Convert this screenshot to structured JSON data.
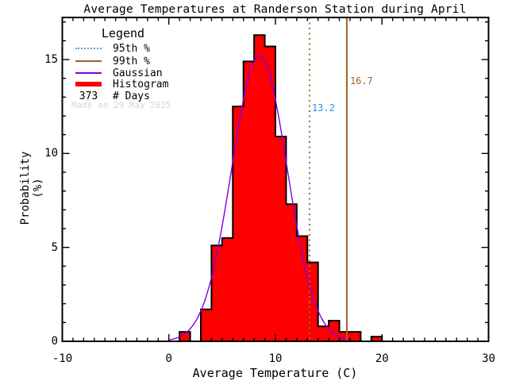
{
  "title": "Average Temperatures at Randerson Station during April",
  "x_axis": {
    "label": "Average Temperature (C)",
    "ticks": [
      -10,
      0,
      10,
      20,
      30
    ],
    "minor_step": 1
  },
  "y_axis": {
    "label": "Probability (%)",
    "ticks": [
      0,
      5,
      10,
      15
    ],
    "minor_step": 1
  },
  "legend": {
    "title": "Legend",
    "items": [
      {
        "label": "95th %",
        "style": "dotted",
        "color": "#4da3dd"
      },
      {
        "label": "99th %",
        "style": "solid",
        "color": "#a0622d"
      },
      {
        "label": "Gaussian",
        "style": "solid",
        "color": "#7d00e6"
      },
      {
        "label": "Histogram",
        "style": "thick",
        "color": "#ff0000"
      }
    ],
    "days_value": "373",
    "days_label": "# Days",
    "watermark": "Made on 29 May 2025"
  },
  "annotations": {
    "p95": {
      "label": "13.2",
      "value": 13.2,
      "line_color": "#9a7430",
      "text_color": "#2b93e0",
      "line_style": "dotted"
    },
    "p99": {
      "label": "16.7",
      "value": 16.7,
      "line_color": "#a0622d",
      "text_color": "#a0622d",
      "line_style": "solid"
    }
  },
  "colors": {
    "histogram_fill": "#ff0000",
    "histogram_outline": "#000000",
    "gaussian_curve": "#7d00e6",
    "frame": "#000000",
    "watermark": "#d5d5d5"
  },
  "chart_data": {
    "type": "histogram+gaussian",
    "title": "Average Temperatures at Randerson Station during April",
    "xlabel": "Average Temperature (C)",
    "ylabel": "Probability (%)",
    "xlim": [
      -10,
      30
    ],
    "ylim": [
      0,
      17.24
    ],
    "grid": false,
    "legend_position": "top-left",
    "n_days": 373,
    "percentile_95": 13.2,
    "percentile_99": 16.7,
    "bin_width": 1,
    "bin_start": [
      1,
      2,
      3,
      4,
      5,
      6,
      7,
      8,
      9,
      10,
      11,
      12,
      13,
      14,
      15,
      16,
      17,
      18,
      19
    ],
    "probability_pct": [
      0.5,
      0,
      1.7,
      5.1,
      5.5,
      12.5,
      14.9,
      16.3,
      15.7,
      10.9,
      7.3,
      5.6,
      4.2,
      0.8,
      1.1,
      0.5,
      0.5,
      0,
      0.25
    ],
    "gaussian": {
      "mean": 8.5,
      "sigma": 2.6,
      "peak_pct": 15.2,
      "t_range": [
        0,
        17
      ]
    }
  }
}
